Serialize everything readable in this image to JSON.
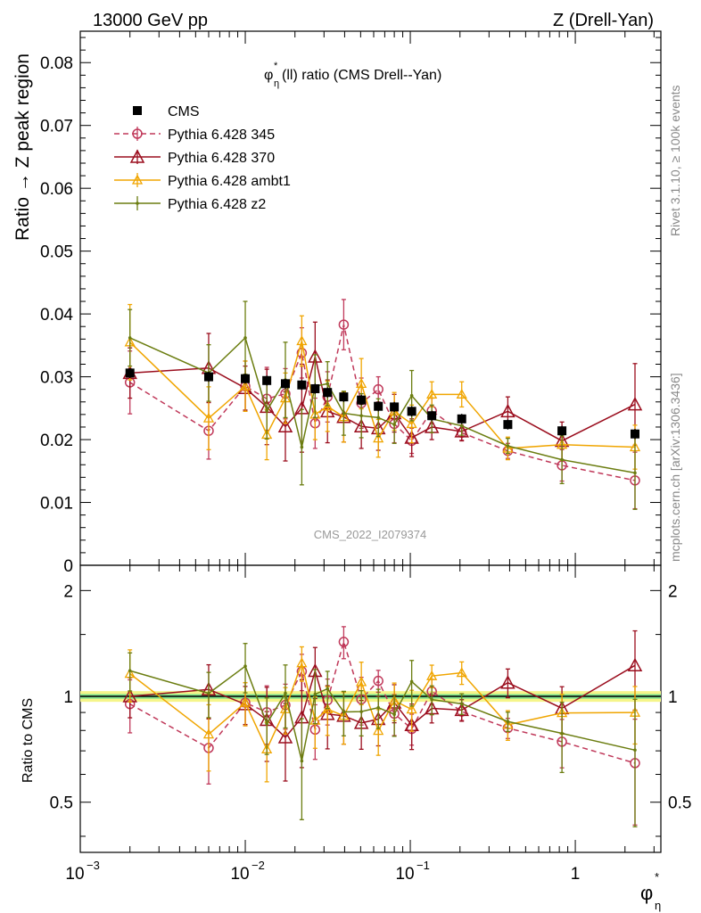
{
  "header": {
    "energy_label": "13000 GeV pp",
    "process_label": "Z (Drell-Yan)",
    "rivet_label": "Rivet 3.1.10, ≥ 100k events",
    "mcplots_label": "mcplots.cern.ch [arXiv:1306.3436]"
  },
  "chart_data": {
    "type": "scatter",
    "title": "(ll) ratio (CMS Drell--Yan)",
    "title_symbol": "φ",
    "title_sup": "*",
    "title_sub": "η",
    "watermark": "CMS_2022_I2079374",
    "ylabel": "Ratio → Z peak region",
    "ratio_ylabel": "Ratio to CMS",
    "xlabel_symbol": "φ",
    "xlabel_sup": "*",
    "xlabel_sub": "η",
    "x_scale": "log",
    "xlim": [
      0.001,
      3.3
    ],
    "ylim": [
      0,
      0.085
    ],
    "ratio_ylim": [
      0.36,
      2.36
    ],
    "legend_position": "top-left",
    "main_y_ticks": [
      "0",
      "0.01",
      "0.02",
      "0.03",
      "0.04",
      "0.05",
      "0.06",
      "0.07",
      "0.08"
    ],
    "ratio_y_ticks": [
      "0.5",
      "1",
      "2"
    ],
    "x_tick_labels": [
      {
        "base": "10",
        "exp": "−3"
      },
      {
        "base": "10",
        "exp": "−2"
      },
      {
        "base": "10",
        "exp": "−1"
      },
      {
        "base": "1",
        "exp": ""
      }
    ],
    "colors": {
      "cms": "#000000",
      "p345": "#c0395a",
      "p370": "#9b0e1e",
      "ambt1": "#f0a500",
      "z2": "#6b7d10",
      "band_outer": "#f5f58a",
      "band_inner": "#7ee28e"
    },
    "x": [
      0.002,
      0.006,
      0.01,
      0.0135,
      0.0175,
      0.022,
      0.0265,
      0.0315,
      0.0395,
      0.0505,
      0.064,
      0.08,
      0.102,
      0.135,
      0.205,
      0.39,
      0.83,
      2.3
    ],
    "series": [
      {
        "name": "CMS",
        "legend_label": "CMS",
        "values": [
          0.0306,
          0.03,
          0.0297,
          0.0294,
          0.0289,
          0.0287,
          0.0281,
          0.0275,
          0.0268,
          0.0263,
          0.0253,
          0.0252,
          0.0245,
          0.0238,
          0.0233,
          0.0224,
          0.0214,
          0.0209
        ],
        "errors": [
          0.0008,
          0.0008,
          0.0008,
          0.0008,
          0.0008,
          0.0008,
          0.0008,
          0.0008,
          0.0008,
          0.0008,
          0.0008,
          0.0008,
          0.0008,
          0.0008,
          0.0008,
          0.0008,
          0.0008,
          0.0008
        ]
      },
      {
        "name": "Pythia 6.428 345",
        "legend_label": "Pythia 6.428 345",
        "values": [
          0.0291,
          0.0214,
          0.0285,
          0.0265,
          0.0273,
          0.0338,
          0.0226,
          0.0268,
          0.0383,
          0.0258,
          0.028,
          0.0225,
          0.0198,
          0.0246,
          0.0211,
          0.0182,
          0.0159,
          0.0135
        ],
        "errors": [
          0.005,
          0.0045,
          0.004,
          0.005,
          0.004,
          0.004,
          0.004,
          0.004,
          0.004,
          0.004,
          0.002,
          0.003,
          0.002,
          0.002,
          0.0012,
          0.0012,
          0.0025,
          0.0045
        ]
      },
      {
        "name": "Pythia 6.428 370",
        "legend_label": "Pythia 6.428 370",
        "values": [
          0.0306,
          0.0314,
          0.0282,
          0.0252,
          0.0221,
          0.025,
          0.0332,
          0.0245,
          0.0236,
          0.0221,
          0.0218,
          0.0242,
          0.0203,
          0.022,
          0.0213,
          0.0245,
          0.0198,
          0.0256
        ],
        "errors": [
          0.004,
          0.0055,
          0.0035,
          0.006,
          0.0055,
          0.007,
          0.0055,
          0.005,
          0.004,
          0.0035,
          0.0035,
          0.003,
          0.003,
          0.002,
          0.0015,
          0.0023,
          0.003,
          0.0065
        ]
      },
      {
        "name": "Pythia 6.428 ambt1",
        "legend_label": "Pythia 6.428 ambt1",
        "values": [
          0.0355,
          0.0234,
          0.0285,
          0.0208,
          0.0266,
          0.0357,
          0.024,
          0.0253,
          0.0236,
          0.0289,
          0.0202,
          0.0245,
          0.0225,
          0.0272,
          0.0272,
          0.0186,
          0.0192,
          0.0188
        ],
        "errors": [
          0.006,
          0.005,
          0.004,
          0.004,
          0.004,
          0.004,
          0.004,
          0.004,
          0.004,
          0.004,
          0.003,
          0.003,
          0.003,
          0.002,
          0.002,
          0.0018,
          0.0025,
          0.0035
        ]
      },
      {
        "name": "Pythia 6.428 z2",
        "legend_label": "Pythia 6.428 z2",
        "values": [
          0.0362,
          0.0306,
          0.0362,
          0.0246,
          0.0295,
          0.0188,
          0.0285,
          0.0289,
          0.0242,
          0.0238,
          0.0235,
          0.0224,
          0.027,
          0.0233,
          0.0222,
          0.019,
          0.0168,
          0.0147
        ],
        "errors": [
          0.0045,
          0.0045,
          0.0058,
          0.0045,
          0.006,
          0.006,
          0.005,
          0.0035,
          0.0035,
          0.0035,
          0.003,
          0.003,
          0.004,
          0.0022,
          0.0015,
          0.0012,
          0.0038,
          0.0058
        ]
      }
    ]
  }
}
